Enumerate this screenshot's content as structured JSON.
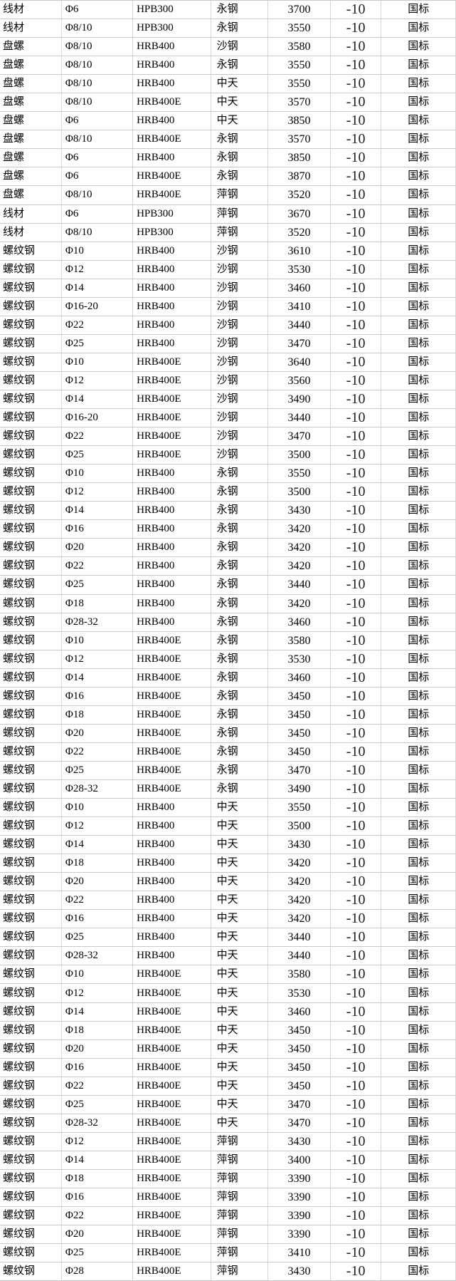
{
  "colors": {
    "background": "#ffffff",
    "grid_line_horizontal": "#c9c9c9",
    "grid_line_vertical": "#d6d6d6",
    "text": "#000000",
    "change_text": "#1f1f1f"
  },
  "table": {
    "rows": [
      {
        "product": "线材",
        "spec": "Φ6",
        "grade": "HPB300",
        "mill": "永钢",
        "price": "3700",
        "change": "-10",
        "note": "国标"
      },
      {
        "product": "线材",
        "spec": "Φ8/10",
        "grade": "HPB300",
        "mill": "永钢",
        "price": "3550",
        "change": "-10",
        "note": "国标"
      },
      {
        "product": "盘螺",
        "spec": "Φ8/10",
        "grade": "HRB400",
        "mill": "沙钢",
        "price": "3580",
        "change": "-10",
        "note": "国标"
      },
      {
        "product": "盘螺",
        "spec": "Φ8/10",
        "grade": "HRB400",
        "mill": "永钢",
        "price": "3550",
        "change": "-10",
        "note": "国标"
      },
      {
        "product": "盘螺",
        "spec": "Φ8/10",
        "grade": "HRB400",
        "mill": "中天",
        "price": "3550",
        "change": "-10",
        "note": "国标"
      },
      {
        "product": "盘螺",
        "spec": "Φ8/10",
        "grade": "HRB400E",
        "mill": "中天",
        "price": "3570",
        "change": "-10",
        "note": "国标"
      },
      {
        "product": "盘螺",
        "spec": "Φ6",
        "grade": "HRB400",
        "mill": "中天",
        "price": "3850",
        "change": "-10",
        "note": "国标"
      },
      {
        "product": "盘螺",
        "spec": "Φ8/10",
        "grade": "HRB400E",
        "mill": "永钢",
        "price": "3570",
        "change": "-10",
        "note": "国标"
      },
      {
        "product": "盘螺",
        "spec": "Φ6",
        "grade": "HRB400",
        "mill": "永钢",
        "price": "3850",
        "change": "-10",
        "note": "国标"
      },
      {
        "product": "盘螺",
        "spec": "Φ6",
        "grade": "HRB400E",
        "mill": "永钢",
        "price": "3870",
        "change": "-10",
        "note": "国标"
      },
      {
        "product": "盘螺",
        "spec": "Φ8/10",
        "grade": "HRB400E",
        "mill": "萍钢",
        "price": "3520",
        "change": "-10",
        "note": "国标"
      },
      {
        "product": "线材",
        "spec": "Φ6",
        "grade": "HPB300",
        "mill": "萍钢",
        "price": "3670",
        "change": "-10",
        "note": "国标"
      },
      {
        "product": "线材",
        "spec": "Φ8/10",
        "grade": "HPB300",
        "mill": "萍钢",
        "price": "3520",
        "change": "-10",
        "note": "国标"
      },
      {
        "product": "螺纹钢",
        "spec": "Φ10",
        "grade": "HRB400",
        "mill": "沙钢",
        "price": "3610",
        "change": "-10",
        "note": "国标"
      },
      {
        "product": "螺纹钢",
        "spec": "Φ12",
        "grade": "HRB400",
        "mill": "沙钢",
        "price": "3530",
        "change": "-10",
        "note": "国标"
      },
      {
        "product": "螺纹钢",
        "spec": "Φ14",
        "grade": "HRB400",
        "mill": "沙钢",
        "price": "3460",
        "change": "-10",
        "note": "国标"
      },
      {
        "product": "螺纹钢",
        "spec": "Φ16-20",
        "grade": "HRB400",
        "mill": "沙钢",
        "price": "3410",
        "change": "-10",
        "note": "国标"
      },
      {
        "product": "螺纹钢",
        "spec": "Φ22",
        "grade": "HRB400",
        "mill": "沙钢",
        "price": "3440",
        "change": "-10",
        "note": "国标"
      },
      {
        "product": "螺纹钢",
        "spec": "Φ25",
        "grade": "HRB400",
        "mill": "沙钢",
        "price": "3470",
        "change": "-10",
        "note": "国标"
      },
      {
        "product": "螺纹钢",
        "spec": "Φ10",
        "grade": "HRB400E",
        "mill": "沙钢",
        "price": "3640",
        "change": "-10",
        "note": "国标"
      },
      {
        "product": "螺纹钢",
        "spec": "Φ12",
        "grade": "HRB400E",
        "mill": "沙钢",
        "price": "3560",
        "change": "-10",
        "note": "国标"
      },
      {
        "product": "螺纹钢",
        "spec": "Φ14",
        "grade": "HRB400E",
        "mill": "沙钢",
        "price": "3490",
        "change": "-10",
        "note": "国标"
      },
      {
        "product": "螺纹钢",
        "spec": "Φ16-20",
        "grade": "HRB400E",
        "mill": "沙钢",
        "price": "3440",
        "change": "-10",
        "note": "国标"
      },
      {
        "product": "螺纹钢",
        "spec": "Φ22",
        "grade": "HRB400E",
        "mill": "沙钢",
        "price": "3470",
        "change": "-10",
        "note": "国标"
      },
      {
        "product": "螺纹钢",
        "spec": "Φ25",
        "grade": "HRB400E",
        "mill": "沙钢",
        "price": "3500",
        "change": "-10",
        "note": "国标"
      },
      {
        "product": "螺纹钢",
        "spec": "Φ10",
        "grade": "HRB400",
        "mill": "永钢",
        "price": "3550",
        "change": "-10",
        "note": "国标"
      },
      {
        "product": "螺纹钢",
        "spec": "Φ12",
        "grade": "HRB400",
        "mill": "永钢",
        "price": "3500",
        "change": "-10",
        "note": "国标"
      },
      {
        "product": "螺纹钢",
        "spec": "Φ14",
        "grade": "HRB400",
        "mill": "永钢",
        "price": "3430",
        "change": "-10",
        "note": "国标"
      },
      {
        "product": "螺纹钢",
        "spec": "Φ16",
        "grade": "HRB400",
        "mill": "永钢",
        "price": "3420",
        "change": "-10",
        "note": "国标"
      },
      {
        "product": "螺纹钢",
        "spec": "Φ20",
        "grade": "HRB400",
        "mill": "永钢",
        "price": "3420",
        "change": "-10",
        "note": "国标"
      },
      {
        "product": "螺纹钢",
        "spec": "Φ22",
        "grade": "HRB400",
        "mill": "永钢",
        "price": "3420",
        "change": "-10",
        "note": "国标"
      },
      {
        "product": "螺纹钢",
        "spec": "Φ25",
        "grade": "HRB400",
        "mill": "永钢",
        "price": "3440",
        "change": "-10",
        "note": "国标"
      },
      {
        "product": "螺纹钢",
        "spec": "Φ18",
        "grade": "HRB400",
        "mill": "永钢",
        "price": "3420",
        "change": "-10",
        "note": "国标"
      },
      {
        "product": "螺纹钢",
        "spec": "Φ28-32",
        "grade": "HRB400",
        "mill": "永钢",
        "price": "3460",
        "change": "-10",
        "note": "国标"
      },
      {
        "product": "螺纹钢",
        "spec": "Φ10",
        "grade": "HRB400E",
        "mill": "永钢",
        "price": "3580",
        "change": "-10",
        "note": "国标"
      },
      {
        "product": "螺纹钢",
        "spec": "Φ12",
        "grade": "HRB400E",
        "mill": "永钢",
        "price": "3530",
        "change": "-10",
        "note": "国标"
      },
      {
        "product": "螺纹钢",
        "spec": "Φ14",
        "grade": "HRB400E",
        "mill": "永钢",
        "price": "3460",
        "change": "-10",
        "note": "国标"
      },
      {
        "product": "螺纹钢",
        "spec": "Φ16",
        "grade": "HRB400E",
        "mill": "永钢",
        "price": "3450",
        "change": "-10",
        "note": "国标"
      },
      {
        "product": "螺纹钢",
        "spec": "Φ18",
        "grade": "HRB400E",
        "mill": "永钢",
        "price": "3450",
        "change": "-10",
        "note": "国标"
      },
      {
        "product": "螺纹钢",
        "spec": "Φ20",
        "grade": "HRB400E",
        "mill": "永钢",
        "price": "3450",
        "change": "-10",
        "note": "国标"
      },
      {
        "product": "螺纹钢",
        "spec": "Φ22",
        "grade": "HRB400E",
        "mill": "永钢",
        "price": "3450",
        "change": "-10",
        "note": "国标"
      },
      {
        "product": "螺纹钢",
        "spec": "Φ25",
        "grade": "HRB400E",
        "mill": "永钢",
        "price": "3470",
        "change": "-10",
        "note": "国标"
      },
      {
        "product": "螺纹钢",
        "spec": "Φ28-32",
        "grade": "HRB400E",
        "mill": "永钢",
        "price": "3490",
        "change": "-10",
        "note": "国标"
      },
      {
        "product": "螺纹钢",
        "spec": "Φ10",
        "grade": "HRB400",
        "mill": "中天",
        "price": "3550",
        "change": "-10",
        "note": "国标"
      },
      {
        "product": "螺纹钢",
        "spec": "Φ12",
        "grade": "HRB400",
        "mill": "中天",
        "price": "3500",
        "change": "-10",
        "note": "国标"
      },
      {
        "product": "螺纹钢",
        "spec": "Φ14",
        "grade": "HRB400",
        "mill": "中天",
        "price": "3430",
        "change": "-10",
        "note": "国标"
      },
      {
        "product": "螺纹钢",
        "spec": "Φ18",
        "grade": "HRB400",
        "mill": "中天",
        "price": "3420",
        "change": "-10",
        "note": "国标"
      },
      {
        "product": "螺纹钢",
        "spec": "Φ20",
        "grade": "HRB400",
        "mill": "中天",
        "price": "3420",
        "change": "-10",
        "note": "国标"
      },
      {
        "product": "螺纹钢",
        "spec": "Φ22",
        "grade": "HRB400",
        "mill": "中天",
        "price": "3420",
        "change": "-10",
        "note": "国标"
      },
      {
        "product": "螺纹钢",
        "spec": "Φ16",
        "grade": "HRB400",
        "mill": "中天",
        "price": "3420",
        "change": "-10",
        "note": "国标"
      },
      {
        "product": "螺纹钢",
        "spec": "Φ25",
        "grade": "HRB400",
        "mill": "中天",
        "price": "3440",
        "change": "-10",
        "note": "国标"
      },
      {
        "product": "螺纹钢",
        "spec": "Φ28-32",
        "grade": "HRB400",
        "mill": "中天",
        "price": "3440",
        "change": "-10",
        "note": "国标"
      },
      {
        "product": "螺纹钢",
        "spec": "Φ10",
        "grade": "HRB400E",
        "mill": "中天",
        "price": "3580",
        "change": "-10",
        "note": "国标"
      },
      {
        "product": "螺纹钢",
        "spec": "Φ12",
        "grade": "HRB400E",
        "mill": "中天",
        "price": "3530",
        "change": "-10",
        "note": "国标"
      },
      {
        "product": "螺纹钢",
        "spec": "Φ14",
        "grade": "HRB400E",
        "mill": "中天",
        "price": "3460",
        "change": "-10",
        "note": "国标"
      },
      {
        "product": "螺纹钢",
        "spec": "Φ18",
        "grade": "HRB400E",
        "mill": "中天",
        "price": "3450",
        "change": "-10",
        "note": "国标"
      },
      {
        "product": "螺纹钢",
        "spec": "Φ20",
        "grade": "HRB400E",
        "mill": "中天",
        "price": "3450",
        "change": "-10",
        "note": "国标"
      },
      {
        "product": "螺纹钢",
        "spec": "Φ16",
        "grade": "HRB400E",
        "mill": "中天",
        "price": "3450",
        "change": "-10",
        "note": "国标"
      },
      {
        "product": "螺纹钢",
        "spec": "Φ22",
        "grade": "HRB400E",
        "mill": "中天",
        "price": "3450",
        "change": "-10",
        "note": "国标"
      },
      {
        "product": "螺纹钢",
        "spec": "Φ25",
        "grade": "HRB400E",
        "mill": "中天",
        "price": "3470",
        "change": "-10",
        "note": "国标"
      },
      {
        "product": "螺纹钢",
        "spec": "Φ28-32",
        "grade": "HRB400E",
        "mill": "中天",
        "price": "3470",
        "change": "-10",
        "note": "国标"
      },
      {
        "product": "螺纹钢",
        "spec": "Φ12",
        "grade": "HRB400E",
        "mill": "萍钢",
        "price": "3430",
        "change": "-10",
        "note": "国标"
      },
      {
        "product": "螺纹钢",
        "spec": "Φ14",
        "grade": "HRB400E",
        "mill": "萍钢",
        "price": "3400",
        "change": "-10",
        "note": "国标"
      },
      {
        "product": "螺纹钢",
        "spec": "Φ18",
        "grade": "HRB400E",
        "mill": "萍钢",
        "price": "3390",
        "change": "-10",
        "note": "国标"
      },
      {
        "product": "螺纹钢",
        "spec": "Φ16",
        "grade": "HRB400E",
        "mill": "萍钢",
        "price": "3390",
        "change": "-10",
        "note": "国标"
      },
      {
        "product": "螺纹钢",
        "spec": "Φ22",
        "grade": "HRB400E",
        "mill": "萍钢",
        "price": "3390",
        "change": "-10",
        "note": "国标"
      },
      {
        "product": "螺纹钢",
        "spec": "Φ20",
        "grade": "HRB400E",
        "mill": "萍钢",
        "price": "3390",
        "change": "-10",
        "note": "国标"
      },
      {
        "product": "螺纹钢",
        "spec": "Φ25",
        "grade": "HRB400E",
        "mill": "萍钢",
        "price": "3410",
        "change": "-10",
        "note": "国标"
      },
      {
        "product": "螺纹钢",
        "spec": "Φ28",
        "grade": "HRB400E",
        "mill": "萍钢",
        "price": "3430",
        "change": "-10",
        "note": "国标"
      }
    ]
  }
}
